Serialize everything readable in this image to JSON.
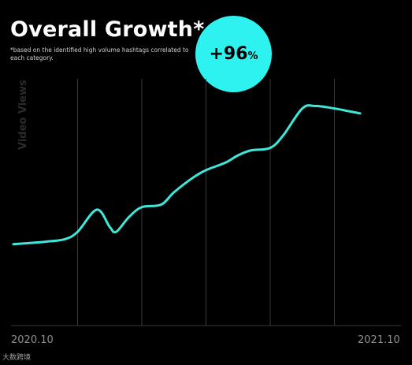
{
  "header": {
    "title": "Overall Growth*",
    "subtitle": "*based on the identified high volume hashtags correlated to each category.",
    "badge_value": "+96",
    "badge_unit": "%",
    "badge_color": "#2ef2ef"
  },
  "watermark": "大数跨境",
  "colors": {
    "line": "#3fe6da",
    "gridline": "#3a3a3a",
    "background": "#000000"
  },
  "chart_data": {
    "type": "line",
    "ylabel": "Video Views",
    "xlabel": "",
    "title": "Overall Growth*",
    "x_ticks": [
      "2020.10",
      "2021.10"
    ],
    "x_range": [
      0,
      12
    ],
    "ylim": [
      0,
      100
    ],
    "grid": "vertical",
    "series": [
      {
        "x": [
          0,
          1,
          1.6,
          2,
          2.6,
          3,
          3.2,
          3.6,
          4,
          4.6,
          5,
          5.6,
          6,
          6.6,
          7,
          7.4,
          8,
          8.4,
          9,
          9.4,
          10,
          10.4,
          10.8
        ],
        "y": [
          33,
          34,
          35,
          38,
          47,
          40,
          38,
          44,
          48,
          49,
          54,
          60,
          63,
          66,
          69,
          71,
          72,
          77,
          88,
          89,
          88,
          87,
          86
        ]
      }
    ]
  }
}
